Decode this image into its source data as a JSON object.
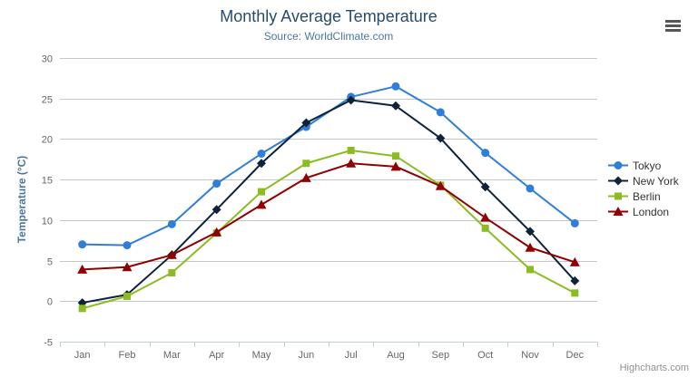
{
  "chart_data": {
    "type": "line",
    "title": "Monthly Average Temperature",
    "subtitle": "Source: WorldClimate.com",
    "categories": [
      "Jan",
      "Feb",
      "Mar",
      "Apr",
      "May",
      "Jun",
      "Jul",
      "Aug",
      "Sep",
      "Oct",
      "Nov",
      "Dec"
    ],
    "series": [
      {
        "name": "Tokyo",
        "color": "#2f7ed8",
        "marker": "circle",
        "values": [
          7.0,
          6.9,
          9.5,
          14.5,
          18.2,
          21.5,
          25.2,
          26.5,
          23.3,
          18.3,
          13.9,
          9.6
        ]
      },
      {
        "name": "New York",
        "color": "#0d233a",
        "marker": "diamond",
        "values": [
          -0.2,
          0.8,
          5.7,
          11.3,
          17.0,
          22.0,
          24.8,
          24.1,
          20.1,
          14.1,
          8.6,
          2.5
        ]
      },
      {
        "name": "Berlin",
        "color": "#8bbc21",
        "marker": "square",
        "values": [
          -0.9,
          0.6,
          3.5,
          8.4,
          13.5,
          17.0,
          18.6,
          17.9,
          14.3,
          9.0,
          3.9,
          1.0
        ]
      },
      {
        "name": "London",
        "color": "#910000",
        "marker": "triangle",
        "values": [
          3.9,
          4.2,
          5.7,
          8.5,
          11.9,
          15.2,
          17.0,
          16.6,
          14.2,
          10.3,
          6.6,
          4.8
        ]
      }
    ],
    "xlabel": "",
    "ylabel": "Temperature (°C)",
    "ylim": [
      -5,
      30
    ],
    "ytick_step": 5,
    "grid": true,
    "legend_position": "right-middle"
  },
  "credits": {
    "label": "Highcharts.com"
  },
  "colors": {
    "title": "#274b6d",
    "subtitle": "#4d759e",
    "yaxis_title": "#4d759e",
    "tick_label": "#666666",
    "gridline": "#c6c6c6",
    "axis_line": "#c0d0e0",
    "legend_text": "#333333",
    "credits_text": "#909090",
    "context_button": "#565656",
    "background": "#ffffff"
  }
}
